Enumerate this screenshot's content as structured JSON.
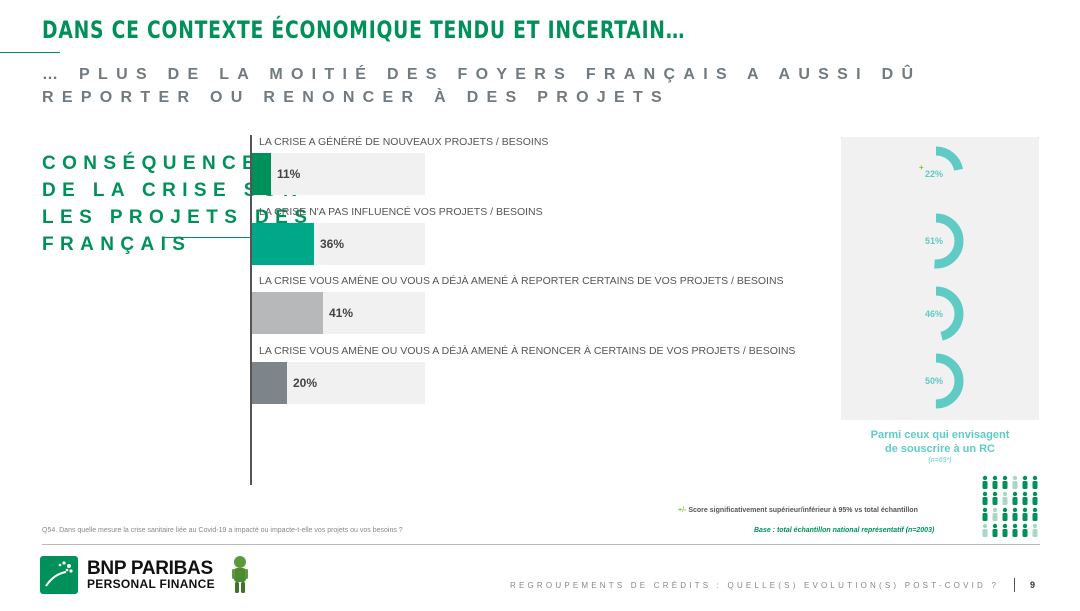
{
  "header": {
    "title": "DANS CE CONTEXTE ÉCONOMIQUE TENDU ET INCERTAIN…",
    "subtitle": "… PLUS DE LA MOITIÉ DES FOYERS FRANÇAIS A AUSSI DÛ REPORTER OU RENONCER À DES PROJETS"
  },
  "section": {
    "line1": "CONSÉQUENCES",
    "line2": "DE LA CRISE SUR",
    "line3": "LES PROJETS DES",
    "line4": "FRANÇAIS"
  },
  "chart_data": [
    {
      "type": "bar",
      "orientation": "horizontal",
      "categories": [
        "LA CRISE A GÉNÉRÉ DE NOUVEAUX  PROJETS / BESOINS",
        "LA CRISE N'A PAS INFLUENCÉ  VOS PROJETS / BESOINS",
        "LA CRISE VOUS AMÈNE OU VOUS A DÉJÀ AMENÉ À REPORTER  CERTAINS DE VOS PROJETS / BESOINS",
        "LA CRISE VOUS AMÈNE OU VOUS A DÉJÀ AMENÉ À RENONCER  À CERTAINS DE VOS PROJETS / BESOINS"
      ],
      "values": [
        11,
        36,
        41,
        20
      ],
      "value_labels": [
        "11%",
        "36%",
        "41%",
        "20%"
      ],
      "colors": [
        "#00915a",
        "#00a88a",
        "#b6b8ba",
        "#7d858b"
      ],
      "ylim": [
        0,
        100
      ]
    },
    {
      "type": "pie",
      "subtype": "donut",
      "series_caption": "Parmi ceux qui envisagent de souscrire à un RC",
      "values": [
        22,
        51,
        46,
        50
      ],
      "value_labels": [
        "22%",
        "51%",
        "46%",
        "50%"
      ],
      "significance_marker": "+",
      "color": "#5fcbc4"
    }
  ],
  "panel": {
    "caption_line1": "Parmi ceux qui envisagent",
    "caption_line2": "de souscrire à un RC",
    "note": "(n=65*)"
  },
  "legend": {
    "marker": "+/-",
    "text_prefix": "Score significativement supérieur/inférieur à 95% vs ",
    "text_bold": "total échantillon"
  },
  "base": "Base : total échantillon national représentatif (n=2003)",
  "question": "Q54. Dans quelle mesure la crise sanitaire liée au Covid-19 a impacté ou impacte-t-elle vos projets ou vos besoins ?",
  "footer": {
    "brand_line1": "BNP PARIBAS",
    "brand_line2": "PERSONAL FINANCE",
    "text": "REGROUPEMENTS DE CRÉDITS : QUELLE(S) EVOLUTION(S) POST-COVID ?",
    "page": "9"
  },
  "colors": {
    "brand_green": "#00915a",
    "teal": "#5fcbc4",
    "grey_text": "#707a80"
  },
  "icons": [
    "bnp-logo-icon",
    "mascot-icon",
    "people-grid-icon"
  ]
}
